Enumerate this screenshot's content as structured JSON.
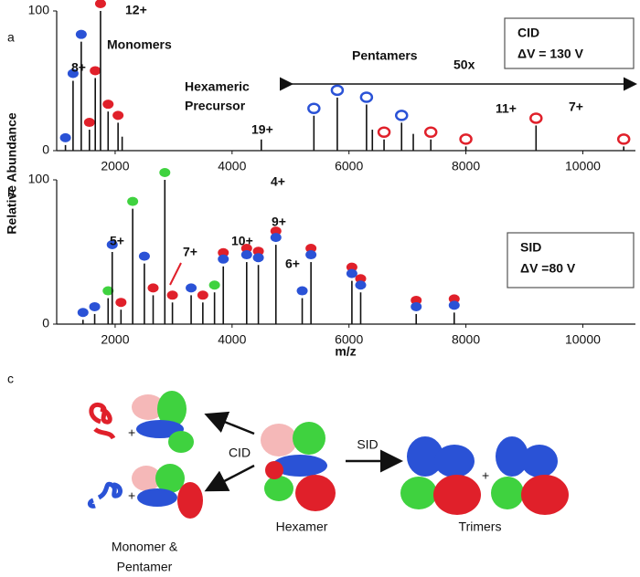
{
  "figure": {
    "panel_labels": [
      "a",
      "b",
      "c"
    ],
    "y_label": "Relative Abundance",
    "x_label": "m/z"
  },
  "chart_data": [
    {
      "type": "spectrum",
      "xlim": [
        1000,
        10900
      ],
      "ylim": [
        0,
        100
      ],
      "xticks": [
        2000,
        4000,
        6000,
        8000,
        10000
      ],
      "yticks": [
        0,
        100
      ],
      "color": "#111111",
      "x": [
        1150,
        1280,
        1420,
        1560,
        1660,
        1750,
        1880,
        2050,
        2120,
        4500,
        5400,
        5800,
        6300,
        6400,
        6600,
        6900,
        7100,
        7400,
        8000,
        9200,
        10700
      ],
      "values": [
        4,
        50,
        78,
        15,
        52,
        100,
        28,
        20,
        10,
        8,
        25,
        38,
        33,
        15,
        8,
        20,
        12,
        8,
        3,
        18,
        3
      ],
      "marker_colors": [
        [
          "#2a52d6"
        ],
        [
          "#2a52d6"
        ],
        [
          "#2a52d6"
        ],
        [
          "#e0202a"
        ],
        [
          "#e0202a"
        ],
        [
          "#e0202a"
        ],
        [
          "#e0202a"
        ],
        [
          "#e0202a"
        ],
        null,
        null,
        [
          "#2a52d6"
        ],
        [
          "#2a52d6"
        ],
        [
          "#2a52d6"
        ],
        null,
        [
          "#e0202a"
        ],
        [
          "#2a52d6"
        ],
        null,
        [
          "#e0202a"
        ],
        [
          "#e0202a"
        ],
        [
          "#e0202a"
        ],
        [
          "#e0202a"
        ]
      ],
      "marker_hollow": [
        false,
        false,
        false,
        false,
        false,
        false,
        false,
        false,
        false,
        false,
        true,
        true,
        true,
        true,
        true,
        true,
        true,
        true,
        true,
        true,
        true
      ],
      "annotations": [
        "8+",
        "12+",
        "Monomers",
        "Hexameric",
        "Precursor",
        "19+",
        "Pentamers",
        "50x",
        "11+",
        "7+"
      ],
      "annotation_colors": [
        "#2a52d6",
        "#e0202a",
        "#111111",
        "#111111",
        "#111111",
        "#111111",
        "#111111",
        "#111111",
        "#2a52d6",
        "#e0202a"
      ],
      "box": {
        "title": "CID",
        "condition": "ΔV = 130 V"
      }
    },
    {
      "type": "spectrum",
      "xlim": [
        1000,
        10900
      ],
      "ylim": [
        0,
        100
      ],
      "xticks": [
        2000,
        4000,
        6000,
        8000,
        10000
      ],
      "yticks": [
        0,
        100
      ],
      "color": "#111111",
      "x": [
        1450,
        1650,
        1880,
        1950,
        2100,
        2300,
        2500,
        2650,
        2850,
        2980,
        3300,
        3500,
        3700,
        3850,
        4250,
        4450,
        4750,
        5200,
        5350,
        6050,
        6200,
        7150,
        7800
      ],
      "values": [
        3,
        7,
        18,
        50,
        10,
        80,
        42,
        20,
        100,
        15,
        20,
        15,
        22,
        40,
        43,
        41,
        55,
        18,
        43,
        30,
        22,
        7,
        8
      ],
      "marker_colors": [
        [
          "#2a52d6"
        ],
        [
          "#2a52d6"
        ],
        [
          "#3fd23f"
        ],
        [
          "#2a52d6"
        ],
        [
          "#e0202a"
        ],
        [
          "#3fd23f"
        ],
        [
          "#2a52d6"
        ],
        [
          "#e0202a"
        ],
        [
          "#3fd23f"
        ],
        [
          "#e0202a"
        ],
        [
          "#2a52d6"
        ],
        [
          "#e0202a"
        ],
        [
          "#3fd23f"
        ],
        [
          "#e0202a",
          "#2a52d6"
        ],
        [
          "#e0202a",
          "#2a52d6"
        ],
        [
          "#e0202a",
          "#2a52d6"
        ],
        [
          "#e0202a",
          "#2a52d6"
        ],
        [
          "#2a52d6"
        ],
        [
          "#e0202a",
          "#2a52d6"
        ],
        [
          "#e0202a",
          "#2a52d6"
        ],
        [
          "#e0202a",
          "#2a52d6"
        ],
        [
          "#e0202a",
          "#2a52d6"
        ],
        [
          "#e0202a",
          "#2a52d6"
        ]
      ],
      "marker_hollow": [
        false,
        false,
        false,
        false,
        false,
        false,
        false,
        false,
        false,
        false,
        false,
        false,
        false,
        false,
        false,
        false,
        false,
        false,
        false,
        false,
        false,
        false,
        false
      ],
      "annotations": [
        "4+",
        "5+",
        "7+",
        "10+",
        "9+",
        "6+"
      ],
      "annotation_colors": [
        "#3fd23f",
        "#2a52d6",
        "#e0202a",
        "#111111",
        "#111111",
        "#3fd23f"
      ],
      "box": {
        "title": "SID",
        "condition": "ΔV =80 V"
      }
    }
  ],
  "diagram": {
    "left_arrow_label": "CID",
    "right_arrow_label": "SID",
    "center_label": "Hexamer",
    "right_label": "Trimers",
    "left_label": [
      "Monomer &",
      "Pentamer"
    ],
    "plus_signs": [
      "+",
      "+",
      "+"
    ]
  }
}
